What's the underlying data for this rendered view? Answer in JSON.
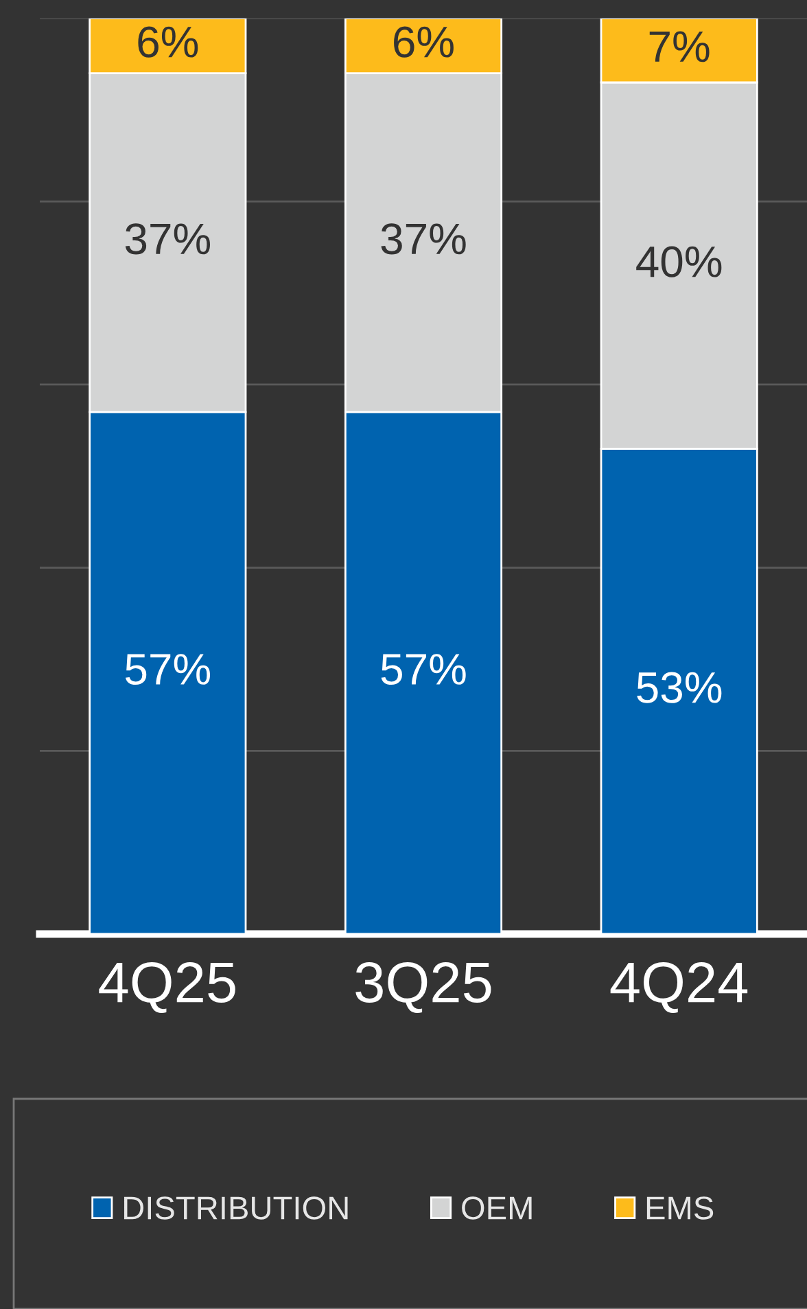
{
  "chart_data": {
    "type": "bar",
    "stacked": true,
    "categories": [
      "4Q25",
      "3Q25",
      "4Q24"
    ],
    "series": [
      {
        "name": "DISTRIBUTION",
        "color": "#0063af",
        "values": [
          57,
          57,
          53
        ],
        "value_labels": [
          "57%",
          "57%",
          "53%"
        ]
      },
      {
        "name": "OEM",
        "color": "#d3d4d4",
        "values": [
          37,
          37,
          40
        ],
        "value_labels": [
          "37%",
          "37%",
          "40%"
        ]
      },
      {
        "name": "EMS",
        "color": "#fdbb1b",
        "values": [
          6,
          6,
          7
        ],
        "value_labels": [
          "6%",
          "6%",
          "7%"
        ]
      }
    ],
    "tick_labels": "x",
    "grid": "y",
    "legend": "bottom"
  }
}
